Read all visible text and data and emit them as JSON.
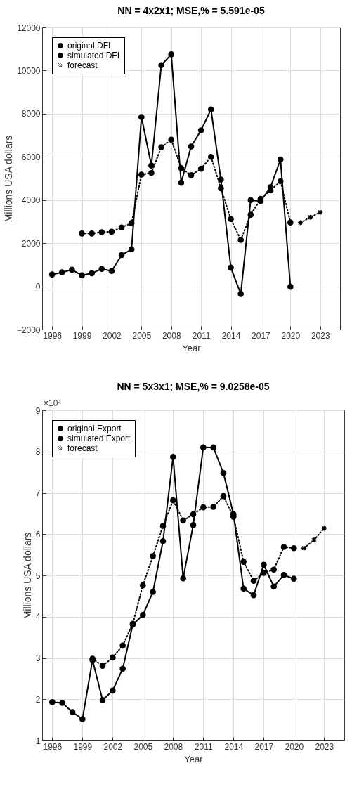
{
  "chart_data": [
    {
      "type": "line",
      "title": "NN = 4x2x1; MSE,% = 5.591e-05",
      "xlabel": "Year",
      "ylabel": "Millions USA dollars",
      "xlim": [
        1995,
        2025
      ],
      "xticks": [
        1996,
        1999,
        2002,
        2005,
        2008,
        2011,
        2014,
        2017,
        2020,
        2023
      ],
      "ylim": [
        -2000,
        12000
      ],
      "yticks": [
        -2000,
        0,
        2000,
        4000,
        6000,
        8000,
        10000,
        12000
      ],
      "grid": true,
      "legend": "top left",
      "series": [
        {
          "name": "original DFI",
          "color": "#000000",
          "marker": "circle",
          "line_style": "solid",
          "x": [
            1996,
            1997,
            1998,
            1999,
            2000,
            2001,
            2002,
            2003,
            2004,
            2005,
            2006,
            2007,
            2008,
            2009,
            2010,
            2011,
            2012,
            2013,
            2014,
            2015,
            2016,
            2017,
            2018,
            2019,
            2020
          ],
          "values": [
            550,
            650,
            770,
            510,
            610,
            810,
            710,
            1450,
            1720,
            7850,
            5600,
            10250,
            10750,
            4800,
            6480,
            7230,
            8200,
            4950,
            870,
            -350,
            4000,
            3950,
            4600,
            5880,
            -20
          ]
        },
        {
          "name": "simulated DFI",
          "color": "#000000",
          "marker": "circle",
          "line_style": "dotted",
          "x": [
            1999,
            2000,
            2001,
            2002,
            2003,
            2004,
            2005,
            2006,
            2007,
            2008,
            2009,
            2010,
            2011,
            2012,
            2013,
            2014,
            2015,
            2016,
            2017,
            2018,
            2019,
            2020
          ],
          "values": [
            2450,
            2450,
            2510,
            2530,
            2730,
            2930,
            5180,
            5260,
            6450,
            6800,
            5480,
            5150,
            5450,
            6000,
            4550,
            3120,
            2150,
            3320,
            4050,
            4450,
            4870,
            2960
          ]
        },
        {
          "name": "forecast",
          "color": "#000000",
          "marker": "cross",
          "line_style": "dotted",
          "x": [
            2021,
            2022,
            2023
          ],
          "values": [
            2950,
            3200,
            3430
          ]
        }
      ]
    },
    {
      "type": "line",
      "title": "NN = 5x3x1; MSE,% = 9.0258e-05",
      "xlabel": "Year",
      "ylabel": "Millions USA dollars",
      "annotations": [
        "×10⁴"
      ],
      "xlim": [
        1995,
        2025
      ],
      "xticks": [
        1996,
        1999,
        2002,
        2005,
        2008,
        2011,
        2014,
        2017,
        2020,
        2023
      ],
      "ylim": [
        1,
        9
      ],
      "yticks": [
        1,
        2,
        3,
        4,
        5,
        6,
        7,
        8,
        9
      ],
      "grid": true,
      "legend": "top left",
      "series": [
        {
          "name": "original Export",
          "color": "#000000",
          "marker": "circle",
          "line_style": "solid",
          "x": [
            1996,
            1997,
            1998,
            1999,
            2000,
            2001,
            2002,
            2003,
            2004,
            2005,
            2006,
            2007,
            2008,
            2009,
            2010,
            2011,
            2012,
            2013,
            2014,
            2015,
            2016,
            2017,
            2018,
            2019,
            2020
          ],
          "values": [
            1.93,
            1.91,
            1.69,
            1.52,
            2.95,
            1.98,
            2.21,
            2.74,
            3.81,
            4.04,
            4.6,
            5.83,
            7.87,
            4.93,
            6.22,
            8.1,
            8.1,
            7.48,
            6.48,
            4.68,
            4.52,
            5.26,
            4.73,
            5.01,
            4.92
          ]
        },
        {
          "name": "simulated Export",
          "color": "#000000",
          "marker": "circle",
          "line_style": "dotted",
          "x": [
            2000,
            2001,
            2002,
            2003,
            2004,
            2005,
            2006,
            2007,
            2008,
            2009,
            2010,
            2011,
            2012,
            2013,
            2014,
            2015,
            2016,
            2017,
            2018,
            2019,
            2020
          ],
          "values": [
            2.98,
            2.81,
            3.01,
            3.3,
            3.83,
            4.76,
            5.47,
            6.2,
            6.82,
            6.33,
            6.48,
            6.65,
            6.66,
            6.92,
            6.42,
            5.33,
            4.87,
            5.06,
            5.14,
            5.69,
            5.66
          ]
        },
        {
          "name": "forecast",
          "color": "#000000",
          "marker": "cross",
          "line_style": "dotted",
          "x": [
            2021,
            2022,
            2023
          ],
          "values": [
            5.66,
            5.86,
            6.14
          ]
        }
      ]
    }
  ]
}
